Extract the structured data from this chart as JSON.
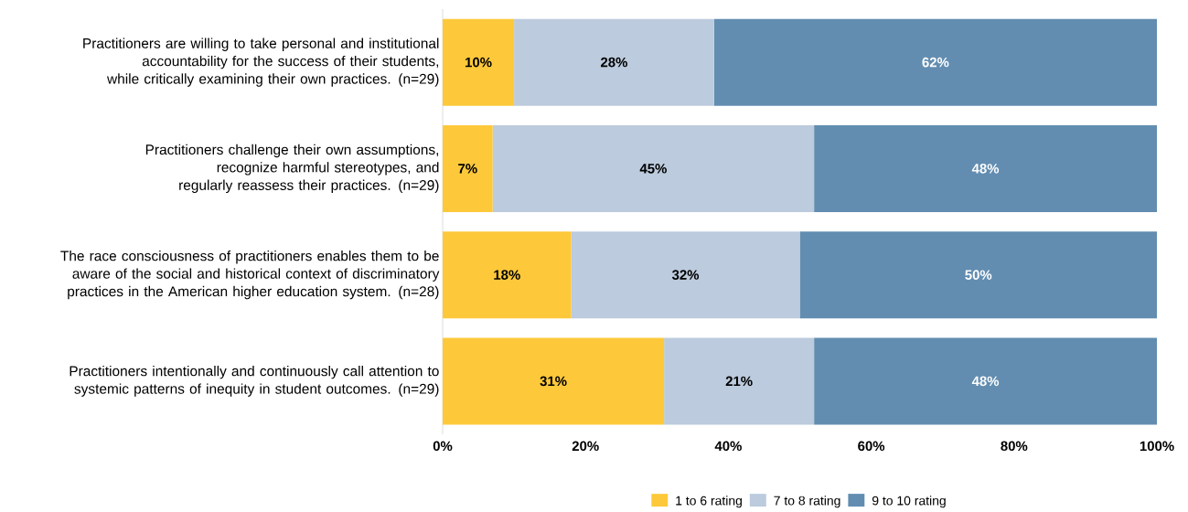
{
  "chart_data": {
    "type": "bar",
    "orientation": "horizontal",
    "stacked": true,
    "categories": [
      "Practitioners are willing to take personal and institutional accountability for the success of their students, while critically examining their own practices. (n=29)",
      "Practitioners challenge their own assumptions, recognize harmful stereotypes, and regularly reassess their practices. (n=29)",
      "The race consciousness of practitioners enables them to be aware of the social and historical context of discriminatory practices in the American higher education system. (n=28)",
      "Practitioners intentionally and continuously call attention to systemic patterns of inequity in student outcomes. (n=29)"
    ],
    "series": [
      {
        "name": "1 to 6 rating",
        "color": "#fdc93b",
        "values": [
          10,
          7,
          18,
          31
        ],
        "value_labels": [
          "10%",
          "7%",
          "18%",
          "31%"
        ]
      },
      {
        "name": "7 to 8 rating",
        "color": "#bccbdd",
        "values": [
          28,
          45,
          32,
          21
        ],
        "value_labels": [
          "28%",
          "45%",
          "32%",
          "21%"
        ]
      },
      {
        "name": "9 to 10 rating",
        "color": "#628db1",
        "values": [
          62,
          48,
          50,
          48
        ],
        "value_labels": [
          "62%",
          "48%",
          "50%",
          "48%"
        ]
      }
    ],
    "xlim": [
      0,
      100
    ],
    "xticks": [
      {
        "value": 0,
        "label": "0%"
      },
      {
        "value": 20,
        "label": "20%"
      },
      {
        "value": 40,
        "label": "40%"
      },
      {
        "value": 60,
        "label": "60%"
      },
      {
        "value": 80,
        "label": "80%"
      },
      {
        "value": 100,
        "label": "100%"
      }
    ],
    "legend": "bottom"
  }
}
